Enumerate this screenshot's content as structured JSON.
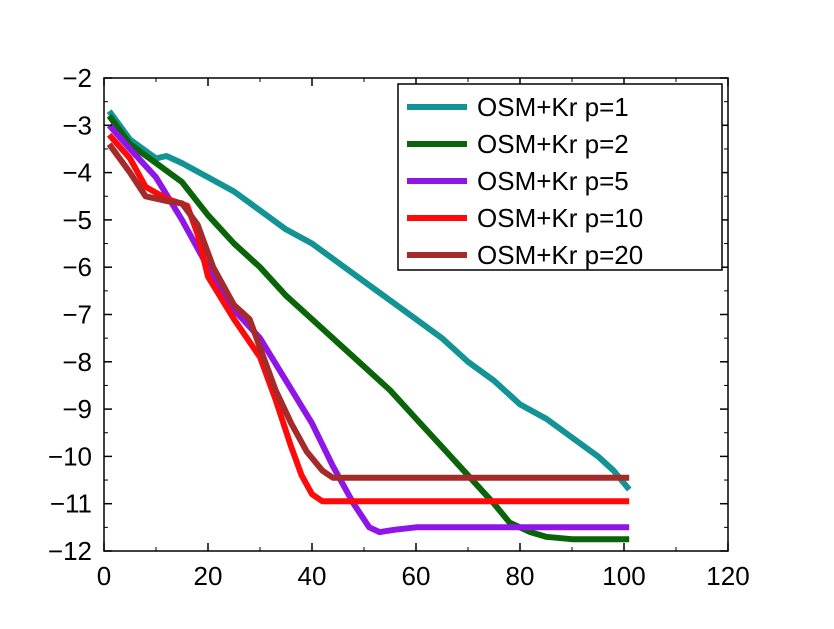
{
  "chart_data": {
    "type": "line",
    "title": "",
    "xlabel": "",
    "ylabel": "",
    "xlim": [
      0,
      120
    ],
    "ylim": [
      -12,
      -2
    ],
    "xticks": [
      0,
      20,
      40,
      60,
      80,
      100,
      120
    ],
    "xtick_labels": [
      "0",
      "20",
      "40",
      "60",
      "80",
      "100",
      "120"
    ],
    "yticks": [
      -2,
      -3,
      -4,
      -5,
      -6,
      -7,
      -8,
      -9,
      -10,
      -11,
      -12
    ],
    "ytick_labels": [
      "−2",
      "−3",
      "−4",
      "−5",
      "−6",
      "−7",
      "−8",
      "−9",
      "−10",
      "−11",
      "−12"
    ],
    "grid": false,
    "legend_position": "top-right",
    "series": [
      {
        "name": "OSM+Kr p=1",
        "color": "#129494",
        "points": [
          [
            1,
            -2.7
          ],
          [
            5,
            -3.3
          ],
          [
            10,
            -3.7
          ],
          [
            12,
            -3.65
          ],
          [
            15,
            -3.8
          ],
          [
            20,
            -4.1
          ],
          [
            25,
            -4.4
          ],
          [
            30,
            -4.8
          ],
          [
            35,
            -5.2
          ],
          [
            40,
            -5.5
          ],
          [
            45,
            -5.9
          ],
          [
            50,
            -6.3
          ],
          [
            55,
            -6.7
          ],
          [
            60,
            -7.1
          ],
          [
            65,
            -7.5
          ],
          [
            70,
            -8.0
          ],
          [
            75,
            -8.4
          ],
          [
            80,
            -8.9
          ],
          [
            85,
            -9.2
          ],
          [
            90,
            -9.6
          ],
          [
            95,
            -10.0
          ],
          [
            98,
            -10.3
          ],
          [
            101,
            -10.7
          ]
        ]
      },
      {
        "name": "OSM+Kr p=2",
        "color": "#0a640a",
        "points": [
          [
            1,
            -2.8
          ],
          [
            5,
            -3.4
          ],
          [
            10,
            -3.8
          ],
          [
            15,
            -4.2
          ],
          [
            20,
            -4.9
          ],
          [
            25,
            -5.5
          ],
          [
            30,
            -6.0
          ],
          [
            35,
            -6.6
          ],
          [
            40,
            -7.1
          ],
          [
            45,
            -7.6
          ],
          [
            50,
            -8.1
          ],
          [
            55,
            -8.6
          ],
          [
            60,
            -9.2
          ],
          [
            65,
            -9.8
          ],
          [
            70,
            -10.4
          ],
          [
            75,
            -11.0
          ],
          [
            78,
            -11.4
          ],
          [
            82,
            -11.6
          ],
          [
            85,
            -11.7
          ],
          [
            90,
            -11.75
          ],
          [
            95,
            -11.75
          ],
          [
            101,
            -11.75
          ]
        ]
      },
      {
        "name": "OSM+Kr p=5",
        "color": "#8f16e6",
        "points": [
          [
            1,
            -3.0
          ],
          [
            5,
            -3.5
          ],
          [
            10,
            -4.1
          ],
          [
            15,
            -5.0
          ],
          [
            20,
            -6.0
          ],
          [
            25,
            -6.9
          ],
          [
            30,
            -7.5
          ],
          [
            35,
            -8.4
          ],
          [
            40,
            -9.3
          ],
          [
            44,
            -10.2
          ],
          [
            48,
            -11.0
          ],
          [
            51,
            -11.5
          ],
          [
            53,
            -11.6
          ],
          [
            56,
            -11.55
          ],
          [
            60,
            -11.5
          ],
          [
            101,
            -11.5
          ]
        ]
      },
      {
        "name": "OSM+Kr p=10",
        "color": "#ff0a0a",
        "points": [
          [
            1,
            -3.2
          ],
          [
            5,
            -3.7
          ],
          [
            8,
            -4.3
          ],
          [
            12,
            -4.55
          ],
          [
            16,
            -4.7
          ],
          [
            18,
            -5.3
          ],
          [
            20,
            -6.2
          ],
          [
            25,
            -7.1
          ],
          [
            30,
            -7.9
          ],
          [
            33,
            -8.8
          ],
          [
            36,
            -9.8
          ],
          [
            38,
            -10.4
          ],
          [
            40,
            -10.8
          ],
          [
            42,
            -10.95
          ],
          [
            45,
            -10.95
          ],
          [
            101,
            -10.95
          ]
        ]
      },
      {
        "name": "OSM+Kr p=20",
        "color": "#a52a2a",
        "points": [
          [
            1,
            -3.4
          ],
          [
            5,
            -4.0
          ],
          [
            8,
            -4.5
          ],
          [
            12,
            -4.6
          ],
          [
            15,
            -4.65
          ],
          [
            18,
            -5.1
          ],
          [
            21,
            -6.0
          ],
          [
            25,
            -6.8
          ],
          [
            28,
            -7.1
          ],
          [
            30,
            -7.7
          ],
          [
            33,
            -8.6
          ],
          [
            36,
            -9.3
          ],
          [
            39,
            -9.9
          ],
          [
            42,
            -10.3
          ],
          [
            44,
            -10.45
          ],
          [
            50,
            -10.45
          ],
          [
            101,
            -10.45
          ]
        ]
      }
    ]
  }
}
